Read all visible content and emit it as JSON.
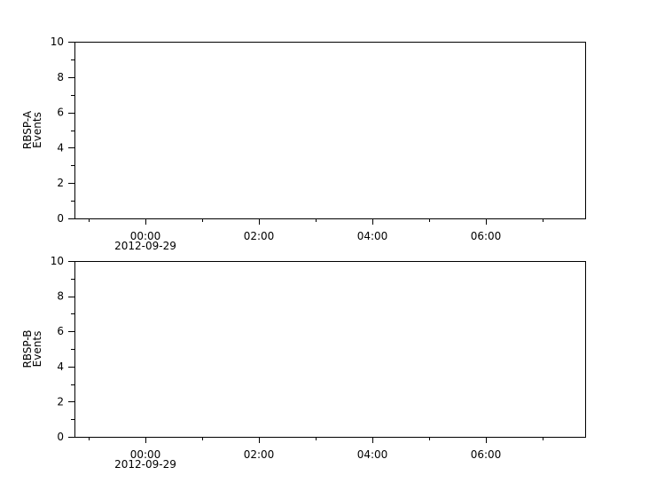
{
  "chart_data": [
    {
      "type": "line",
      "ylabel": [
        "RBSP-A",
        "Events"
      ],
      "ylim": [
        0,
        10
      ],
      "yticks": [
        0,
        2,
        4,
        6,
        8,
        10
      ],
      "xlim": [
        "2012-09-28T22:45",
        "2012-09-29T07:45"
      ],
      "xtick_labels": [
        "00:00",
        "02:00",
        "04:00",
        "06:00"
      ],
      "xtick_hours": [
        0,
        2,
        4,
        6
      ],
      "x_date_label": "2012-09-29",
      "series": [],
      "grid": false
    },
    {
      "type": "line",
      "ylabel": [
        "RBSP-B",
        "Events"
      ],
      "ylim": [
        0,
        10
      ],
      "yticks": [
        0,
        2,
        4,
        6,
        8,
        10
      ],
      "xlim": [
        "2012-09-28T22:45",
        "2012-09-29T07:45"
      ],
      "xtick_labels": [
        "00:00",
        "02:00",
        "04:00",
        "06:00"
      ],
      "xtick_hours": [
        0,
        2,
        4,
        6
      ],
      "x_date_label": "2012-09-29",
      "series": [],
      "grid": false
    }
  ]
}
